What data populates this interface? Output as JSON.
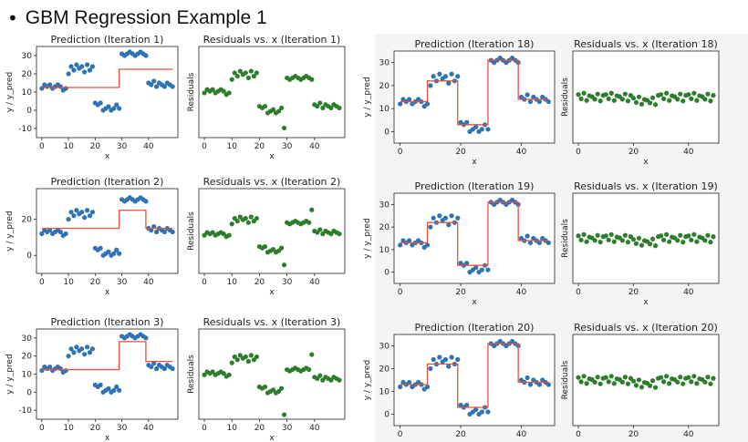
{
  "slide_title": "GBM Regression Example 1",
  "colors": {
    "points": "#2f73b5",
    "residuals": "#2d7d2d",
    "prediction": "#e0533c"
  },
  "chart_data": [
    {
      "type": "scatter+line",
      "title": "Prediction (Iteration 1)",
      "xlabel": "x",
      "ylabel": "y / y_pred",
      "xticks": [
        0,
        10,
        20,
        30,
        40
      ],
      "yticks": [
        -10,
        0,
        10,
        20,
        30
      ],
      "xlim": [
        -2,
        51
      ],
      "ylim": [
        -15,
        35
      ],
      "predicted_steps": [
        {
          "x0": 0,
          "x1": 29,
          "y": 12.5
        },
        {
          "x0": 29,
          "x1": 49,
          "y": 22.5
        }
      ]
    },
    {
      "type": "scatter",
      "title": "Residuals vs. x (Iteration 1)",
      "xlabel": "x",
      "ylabel": "Residuals",
      "xticks": [
        0,
        10,
        20,
        30,
        40
      ],
      "xlim": [
        -2,
        51
      ],
      "ylim": [
        -15,
        15
      ],
      "step_iteration": 1
    },
    {
      "type": "scatter+line",
      "title": "Prediction (Iteration 2)",
      "xlabel": "x",
      "ylabel": "y / y_pred",
      "xticks": [
        0,
        10,
        20,
        30,
        40
      ],
      "yticks": [
        0,
        20
      ],
      "xlim": [
        -2,
        51
      ],
      "ylim": [
        -10,
        37
      ],
      "predicted_steps": [
        {
          "x0": 0,
          "x1": 29,
          "y": 15
        },
        {
          "x0": 29,
          "x1": 39,
          "y": 25
        },
        {
          "x0": 39,
          "x1": 49,
          "y": 15
        }
      ]
    },
    {
      "type": "scatter",
      "title": "Residuals vs. x (Iteration 2)",
      "xlabel": "x",
      "ylabel": "Residuals",
      "xticks": [
        0,
        10,
        20,
        30,
        40
      ],
      "xlim": [
        -2,
        51
      ],
      "ylim": [
        -15,
        15
      ],
      "step_iteration": 2
    },
    {
      "type": "scatter+line",
      "title": "Prediction (Iteration 3)",
      "xlabel": "x",
      "ylabel": "y / y_pred",
      "xticks": [
        0,
        10,
        20,
        30,
        40
      ],
      "yticks": [
        -10,
        0,
        10,
        20,
        30
      ],
      "xlim": [
        -2,
        51
      ],
      "ylim": [
        -15,
        35
      ],
      "predicted_steps": [
        {
          "x0": 0,
          "x1": 29,
          "y": 12.5
        },
        {
          "x0": 29,
          "x1": 39,
          "y": 28
        },
        {
          "x0": 39,
          "x1": 49,
          "y": 17
        }
      ]
    },
    {
      "type": "scatter",
      "title": "Residuals vs. x (Iteration 3)",
      "xlabel": "x",
      "ylabel": "Residuals",
      "xticks": [
        0,
        10,
        20,
        30,
        40
      ],
      "xlim": [
        -2,
        51
      ],
      "ylim": [
        -15,
        15
      ],
      "step_iteration": 3
    },
    {
      "type": "scatter+line",
      "title": "Prediction (Iteration 18)",
      "xlabel": "x",
      "ylabel": "y / y_pred",
      "xticks": [
        0,
        20,
        40
      ],
      "yticks": [
        0,
        10,
        20,
        30
      ],
      "xlim": [
        -2,
        51
      ],
      "ylim": [
        -5,
        35
      ],
      "predicted_steps": [
        {
          "x0": 0,
          "x1": 9,
          "y": 13
        },
        {
          "x0": 9,
          "x1": 19,
          "y": 22
        },
        {
          "x0": 19,
          "x1": 29,
          "y": 3
        },
        {
          "x0": 29,
          "x1": 39,
          "y": 31
        },
        {
          "x0": 39,
          "x1": 49,
          "y": 14
        }
      ]
    },
    {
      "type": "scatter",
      "title": "Residuals vs. x (Iteration 18)",
      "xlabel": "x",
      "ylabel": "Residuals",
      "xticks": [
        0,
        20,
        40
      ],
      "xlim": [
        -2,
        51
      ],
      "ylim": [
        -15,
        15
      ],
      "step_iteration": 18
    },
    {
      "type": "scatter+line",
      "title": "Prediction (Iteration 19)",
      "xlabel": "x",
      "ylabel": "y / y_pred",
      "xticks": [
        0,
        20,
        40
      ],
      "yticks": [
        0,
        10,
        20,
        30
      ],
      "xlim": [
        -2,
        51
      ],
      "ylim": [
        -5,
        35
      ],
      "predicted_steps": [
        {
          "x0": 0,
          "x1": 9,
          "y": 13
        },
        {
          "x0": 9,
          "x1": 19,
          "y": 22
        },
        {
          "x0": 19,
          "x1": 29,
          "y": 3
        },
        {
          "x0": 29,
          "x1": 39,
          "y": 31
        },
        {
          "x0": 39,
          "x1": 49,
          "y": 14
        }
      ]
    },
    {
      "type": "scatter",
      "title": "Residuals vs. x (Iteration 19)",
      "xlabel": "x",
      "ylabel": "Residuals",
      "xticks": [
        0,
        20,
        40
      ],
      "xlim": [
        -2,
        51
      ],
      "ylim": [
        -15,
        15
      ],
      "step_iteration": 19
    },
    {
      "type": "scatter+line",
      "title": "Prediction (Iteration 20)",
      "xlabel": "x",
      "ylabel": "y / y_pred",
      "xticks": [
        0,
        20,
        40
      ],
      "yticks": [
        0,
        10,
        20,
        30
      ],
      "xlim": [
        -2,
        51
      ],
      "ylim": [
        -5,
        35
      ],
      "predicted_steps": [
        {
          "x0": 0,
          "x1": 9,
          "y": 13
        },
        {
          "x0": 9,
          "x1": 19,
          "y": 22
        },
        {
          "x0": 19,
          "x1": 29,
          "y": 3
        },
        {
          "x0": 29,
          "x1": 39,
          "y": 31
        },
        {
          "x0": 39,
          "x1": 49,
          "y": 14
        }
      ]
    },
    {
      "type": "scatter",
      "title": "Residuals vs. x (Iteration 20)",
      "xlabel": "x",
      "ylabel": "Residuals",
      "xticks": [
        0,
        20,
        40
      ],
      "xlim": [
        -2,
        51
      ],
      "ylim": [
        -15,
        15
      ],
      "step_iteration": 20
    }
  ],
  "observed_points": {
    "x": [
      0,
      1,
      2,
      3,
      4,
      5,
      6,
      7,
      8,
      9,
      10,
      11,
      12,
      13,
      14,
      15,
      16,
      17,
      18,
      19,
      20,
      21,
      22,
      23,
      24,
      25,
      26,
      27,
      28,
      29,
      30,
      31,
      32,
      33,
      34,
      35,
      36,
      37,
      38,
      39,
      40,
      41,
      42,
      43,
      44,
      45,
      46,
      47,
      48,
      49
    ],
    "y": [
      12,
      14,
      13,
      14,
      12,
      13,
      14,
      13,
      11,
      12,
      20,
      24,
      22,
      25,
      23,
      24,
      21,
      25,
      22,
      24,
      4,
      3,
      4,
      0,
      1,
      2,
      0,
      1,
      3,
      1,
      31,
      30,
      31,
      32,
      31,
      30,
      31,
      32,
      31,
      30,
      15,
      14,
      16,
      13,
      15,
      14,
      13,
      15,
      14,
      13
    ]
  }
}
